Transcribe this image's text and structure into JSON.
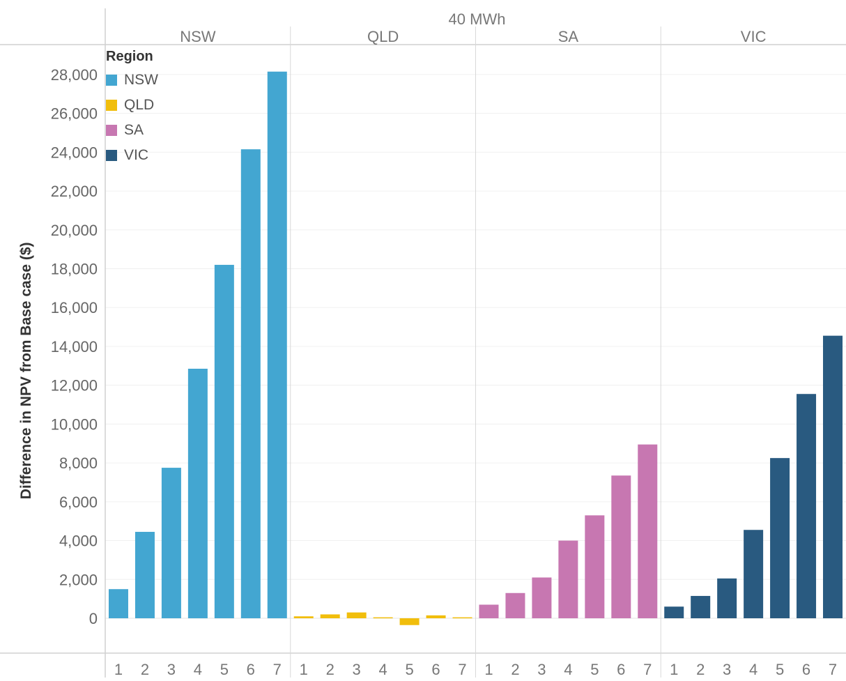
{
  "chart_data": {
    "type": "bar",
    "title": "40 MWh",
    "ylabel": "Difference in NPV from Base case ($)",
    "xlabel": "",
    "ylim": [
      -1500,
      29500
    ],
    "yticks": [
      0,
      2000,
      4000,
      6000,
      8000,
      10000,
      12000,
      14000,
      16000,
      18000,
      20000,
      22000,
      24000,
      26000,
      28000
    ],
    "ytick_labels": [
      "0",
      "2,000",
      "4,000",
      "6,000",
      "8,000",
      "10,000",
      "12,000",
      "14,000",
      "16,000",
      "18,000",
      "20,000",
      "22,000",
      "24,000",
      "26,000",
      "28,000"
    ],
    "categories": [
      "1",
      "2",
      "3",
      "4",
      "5",
      "6",
      "7"
    ],
    "grid": true,
    "legend": {
      "title": "Region",
      "placement": "top-left",
      "items": [
        "NSW",
        "QLD",
        "SA",
        "VIC"
      ]
    },
    "panels": [
      {
        "name": "NSW",
        "color": "#43a6d1",
        "values": [
          1500,
          4450,
          7750,
          12850,
          18200,
          24150,
          28150
        ]
      },
      {
        "name": "QLD",
        "color": "#f1be0c",
        "values": [
          100,
          200,
          300,
          50,
          -350,
          150,
          50
        ]
      },
      {
        "name": "SA",
        "color": "#c777b1",
        "values": [
          700,
          1300,
          2100,
          4000,
          5300,
          7350,
          8950
        ]
      },
      {
        "name": "VIC",
        "color": "#295a80",
        "values": [
          600,
          1150,
          2050,
          4550,
          8250,
          11550,
          14550
        ]
      }
    ]
  }
}
